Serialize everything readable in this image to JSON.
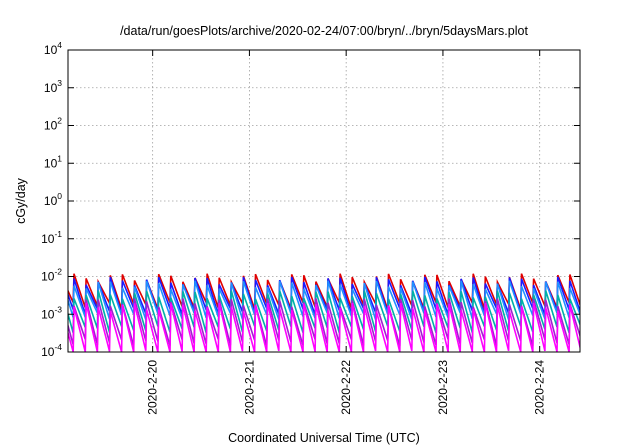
{
  "chart_data": {
    "type": "line",
    "title": "/data/run/goesPlots/archive/2020-02-24/07:00/bryn/../bryn/5daysMars.plot",
    "xlabel": "Coordinated Universal Time (UTC)",
    "ylabel": "cGy/day",
    "yscale": "log",
    "ylim": [
      0.0001,
      10000
    ],
    "yticks": [
      {
        "mantissa": "10",
        "exp": "-4",
        "value": 0.0001
      },
      {
        "mantissa": "10",
        "exp": "-3",
        "value": 0.001
      },
      {
        "mantissa": "10",
        "exp": "-2",
        "value": 0.01
      },
      {
        "mantissa": "10",
        "exp": "-1",
        "value": 0.1
      },
      {
        "mantissa": "10",
        "exp": "0",
        "value": 1
      },
      {
        "mantissa": "10",
        "exp": "1",
        "value": 10
      },
      {
        "mantissa": "10",
        "exp": "2",
        "value": 100
      },
      {
        "mantissa": "10",
        "exp": "3",
        "value": 1000
      },
      {
        "mantissa": "10",
        "exp": "4",
        "value": 10000
      }
    ],
    "xlim": [
      "2020-02-19T03:00",
      "2020-02-24T10:00"
    ],
    "xticks": [
      "2020-2-20",
      "2020-2-21",
      "2020-2-22",
      "2020-2-23",
      "2020-2-24"
    ],
    "grid": true,
    "sawtooth_period_hours": 3,
    "series": [
      {
        "color": "#e00000",
        "peak": 0.0095,
        "trough": 0.0017
      },
      {
        "color": "#1a1aff",
        "peak": 0.0078,
        "trough": 0.0012
      },
      {
        "color": "#2090ff",
        "peak": 0.0062,
        "trough": 0.0009
      },
      {
        "color": "#00b0a8",
        "peak": 0.0034,
        "trough": 0.0004
      },
      {
        "color": "#a020d0",
        "peak": 0.0021,
        "trough": 0.00018
      },
      {
        "color": "#ff00ff",
        "peak": 0.0016,
        "trough": 9e-05
      }
    ]
  }
}
